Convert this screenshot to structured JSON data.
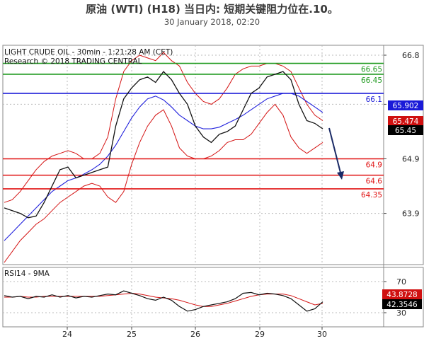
{
  "header": {
    "title": "原油 (WTI) (H18) 当日内: 短期关键阻力位在.10。",
    "subtitle": "30 January 2018, 02:20"
  },
  "chart_data": {
    "type": "line",
    "title": "LIGHT CRUDE OIL - 30min - 1:21:28 AM (CET)",
    "subtitle": "Research © 2018 TRADING CENTRAL",
    "price_axis": {
      "ticks": [
        66.8,
        65.9,
        64.9,
        63.9
      ]
    },
    "x_ticks": [
      "24",
      "25",
      "26",
      "29",
      "30"
    ],
    "levels": [
      {
        "label": "66.65",
        "value": 66.65,
        "color": "#1e9a1e"
      },
      {
        "label": "66.45",
        "value": 66.45,
        "color": "#1e9a1e"
      },
      {
        "label": "66.1",
        "value": 66.1,
        "color": "#1a1ad8"
      },
      {
        "label": "64.9",
        "value": 64.9,
        "color": "#e01010"
      },
      {
        "label": "64.6",
        "value": 64.6,
        "color": "#e01010"
      },
      {
        "label": "64.35",
        "value": 64.35,
        "color": "#e01010"
      }
    ],
    "price_badges": [
      {
        "label": "65.902",
        "color": "#1a1ad8"
      },
      {
        "label": "65.474",
        "color": "#d01010"
      },
      {
        "label": "65.45",
        "color": "#000000"
      }
    ],
    "price_series": {
      "close": [
        64.0,
        63.95,
        63.9,
        63.82,
        63.85,
        64.1,
        64.4,
        64.7,
        64.75,
        64.55,
        64.6,
        64.65,
        64.7,
        64.75,
        65.5,
        66.0,
        66.2,
        66.35,
        66.4,
        66.3,
        66.5,
        66.35,
        66.1,
        65.9,
        65.5,
        65.3,
        65.2,
        65.35,
        65.4,
        65.5,
        65.8,
        66.1,
        66.2,
        66.4,
        66.45,
        66.5,
        66.35,
        65.9,
        65.6,
        65.55,
        65.45
      ],
      "sma": [
        63.4,
        63.55,
        63.7,
        63.85,
        64.0,
        64.15,
        64.3,
        64.4,
        64.5,
        64.55,
        64.62,
        64.7,
        64.8,
        64.95,
        65.15,
        65.4,
        65.65,
        65.85,
        66.0,
        66.05,
        65.98,
        65.85,
        65.7,
        65.6,
        65.5,
        65.45,
        65.45,
        65.48,
        65.55,
        65.62,
        65.7,
        65.8,
        65.9,
        66.0,
        66.05,
        66.1,
        66.1,
        66.05,
        65.95,
        65.85,
        65.75
      ],
      "bb_upper": [
        64.1,
        64.15,
        64.3,
        64.5,
        64.7,
        64.85,
        64.95,
        65.0,
        65.05,
        65.0,
        64.9,
        64.9,
        65.0,
        65.3,
        66.0,
        66.5,
        66.7,
        66.8,
        66.75,
        66.7,
        66.85,
        66.7,
        66.6,
        66.3,
        66.1,
        65.95,
        65.9,
        66.0,
        66.2,
        66.45,
        66.55,
        66.6,
        66.6,
        66.65,
        66.65,
        66.6,
        66.5,
        66.2,
        65.9,
        65.7,
        65.6
      ],
      "bb_lower": [
        63.0,
        63.2,
        63.4,
        63.55,
        63.7,
        63.8,
        63.95,
        64.1,
        64.2,
        64.3,
        64.4,
        64.45,
        64.4,
        64.2,
        64.1,
        64.3,
        64.8,
        65.2,
        65.5,
        65.7,
        65.8,
        65.5,
        65.1,
        64.95,
        64.9,
        64.9,
        64.95,
        65.05,
        65.2,
        65.25,
        65.25,
        65.35,
        65.55,
        65.75,
        65.9,
        65.7,
        65.3,
        65.1,
        65.0,
        65.1,
        65.2
      ]
    },
    "rsi_panel": {
      "title": "RSI14 - 9MA",
      "ticks": [
        70,
        30
      ],
      "badges": [
        {
          "label": "43.8728",
          "color": "#d01010"
        },
        {
          "label": "42.3546",
          "color": "#000000"
        }
      ],
      "rsi": [
        52,
        50,
        51,
        48,
        51,
        50,
        53,
        50,
        52,
        49,
        51,
        50,
        52,
        54,
        53,
        58,
        55,
        52,
        48,
        46,
        50,
        46,
        38,
        32,
        34,
        38,
        40,
        42,
        44,
        48,
        55,
        56,
        53,
        55,
        54,
        52,
        48,
        40,
        32,
        35,
        44
      ],
      "ma": [
        50,
        50,
        51,
        50,
        50,
        51,
        51,
        51,
        51,
        51,
        51,
        51,
        51,
        52,
        53,
        54,
        55,
        54,
        52,
        50,
        49,
        48,
        46,
        43,
        40,
        38,
        38,
        40,
        42,
        45,
        48,
        51,
        53,
        54,
        54,
        54,
        52,
        48,
        44,
        40,
        42
      ]
    }
  }
}
